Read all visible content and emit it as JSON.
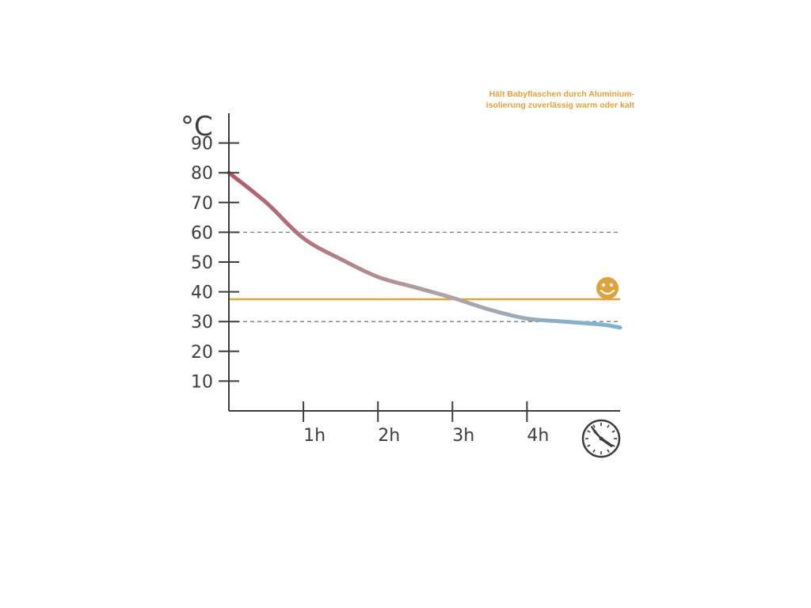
{
  "chart_data": {
    "type": "line",
    "y_unit_label": "°C",
    "annotation_lines": [
      "Hält Babyflaschen durch Aluminium-",
      "isolierung zuverlässig warm oder kalt"
    ],
    "y_ticks": [
      10,
      20,
      30,
      40,
      50,
      60,
      70,
      80,
      90
    ],
    "x_ticks": [
      {
        "value": 1,
        "label": "1h"
      },
      {
        "value": 2,
        "label": "2h"
      },
      {
        "value": 3,
        "label": "3h"
      },
      {
        "value": 4,
        "label": "4h"
      }
    ],
    "xlim": [
      0,
      5.25
    ],
    "ylim": [
      0,
      100
    ],
    "series": [
      {
        "x": [
          0,
          0.5,
          1,
          1.5,
          2,
          2.5,
          3,
          3.5,
          4,
          4.5,
          5,
          5.25
        ],
        "y": [
          80,
          70,
          58,
          51,
          45,
          41.5,
          38,
          34,
          31,
          30,
          29,
          28
        ],
        "color_start": "#b35a6a",
        "color_mid": "#b0a4a4",
        "color_end": "#79b4d8"
      }
    ],
    "reference_lines": [
      {
        "y": 60,
        "style": "dashed",
        "color": "#7a7a7a"
      },
      {
        "y": 30,
        "style": "dashed",
        "color": "#7a7a7a"
      },
      {
        "y": 37.5,
        "style": "solid",
        "color": "#e0a23a"
      }
    ],
    "accent_color": "#e0a23a",
    "axis_color": "#3d3d3d",
    "smiley_icon": "smiley-face-icon",
    "clock_icon": "clock-icon"
  }
}
